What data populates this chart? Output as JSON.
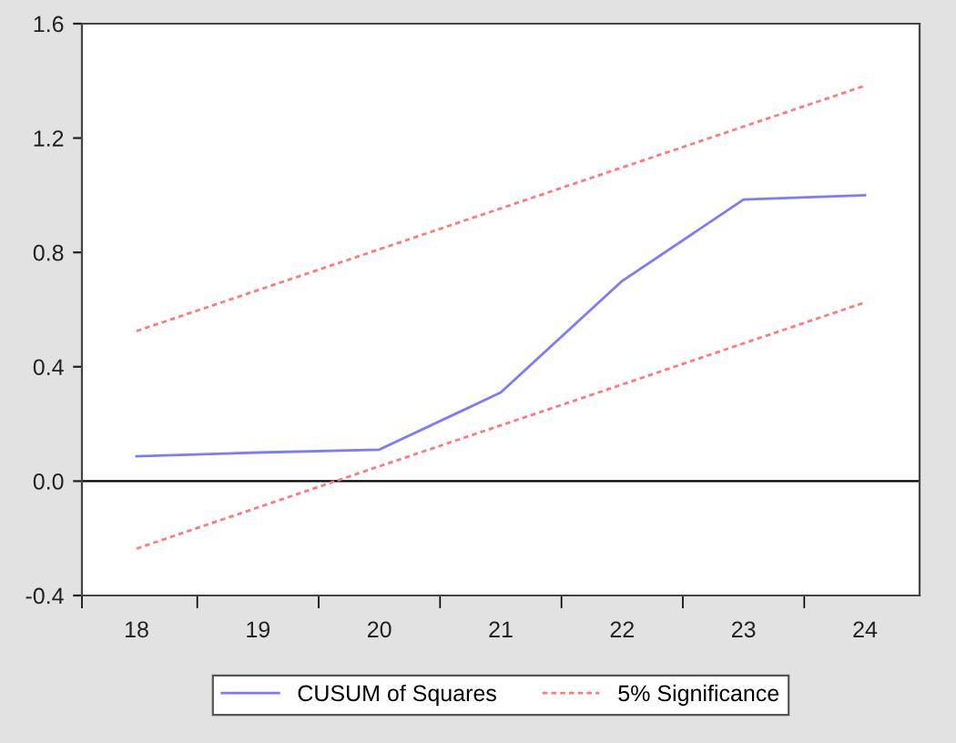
{
  "chart_data": {
    "type": "line",
    "categories": [
      "18",
      "19",
      "20",
      "21",
      "22",
      "23",
      "24"
    ],
    "series": [
      {
        "name": "CUSUM of Squares",
        "color": "#7b7bff",
        "line_style": "solid",
        "values": [
          0.087,
          0.1,
          0.11,
          0.31,
          0.7,
          0.985,
          1.0
        ]
      },
      {
        "name": "5% Significance",
        "color": "#ff7b7b",
        "line_style": "dotted",
        "values": [
          0.525,
          0.668,
          0.811,
          0.954,
          1.097,
          1.24,
          1.383
        ]
      },
      {
        "color": "#ff7b7b",
        "line_style": "dotted",
        "values": [
          -0.236,
          -0.092,
          0.052,
          0.195,
          0.338,
          0.482,
          0.625
        ]
      }
    ],
    "ylim": [
      -0.4,
      1.6
    ],
    "yticks": [
      -0.4,
      {
        "value": 0.0,
        "label": "0.0"
      },
      0.4,
      0.8,
      1.2,
      1.6
    ],
    "ref_lines": [
      {
        "axis": "y",
        "value": 0.0,
        "color": "#000000"
      }
    ],
    "grid": false,
    "legend": "bottom",
    "marker": "none"
  }
}
